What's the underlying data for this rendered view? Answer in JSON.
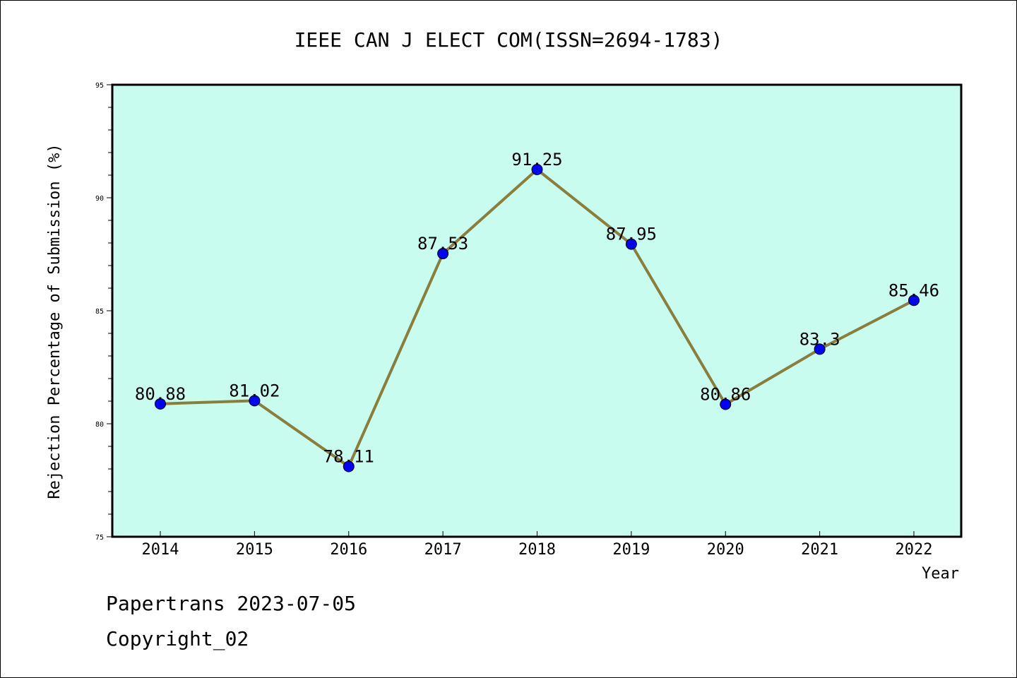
{
  "chart_data": {
    "type": "line",
    "title": "IEEE CAN J ELECT COM(ISSN=2694-1783)",
    "xlabel": "Year",
    "ylabel": "Rejection Percentage of Submission (%)",
    "categories": [
      "2014",
      "2015",
      "2016",
      "2017",
      "2018",
      "2019",
      "2020",
      "2021",
      "2022"
    ],
    "values": [
      80.88,
      81.02,
      78.11,
      87.53,
      91.25,
      87.95,
      80.86,
      83.3,
      85.46
    ],
    "data_labels": [
      "80.88",
      "81.02",
      "78.11",
      "87.53",
      "91.25",
      "87.95",
      "80.86",
      "83.3",
      "85.46"
    ],
    "ylim": [
      75,
      95
    ],
    "yticks": [
      "75",
      "80",
      "85",
      "90",
      "95"
    ],
    "grid": false,
    "colors": {
      "plot_background": "#c8fcee",
      "line": "#8b7d3a",
      "marker": "#0000ff"
    }
  },
  "footer": {
    "line1": "Papertrans 2023-07-05",
    "line2": "Copyright_02"
  }
}
